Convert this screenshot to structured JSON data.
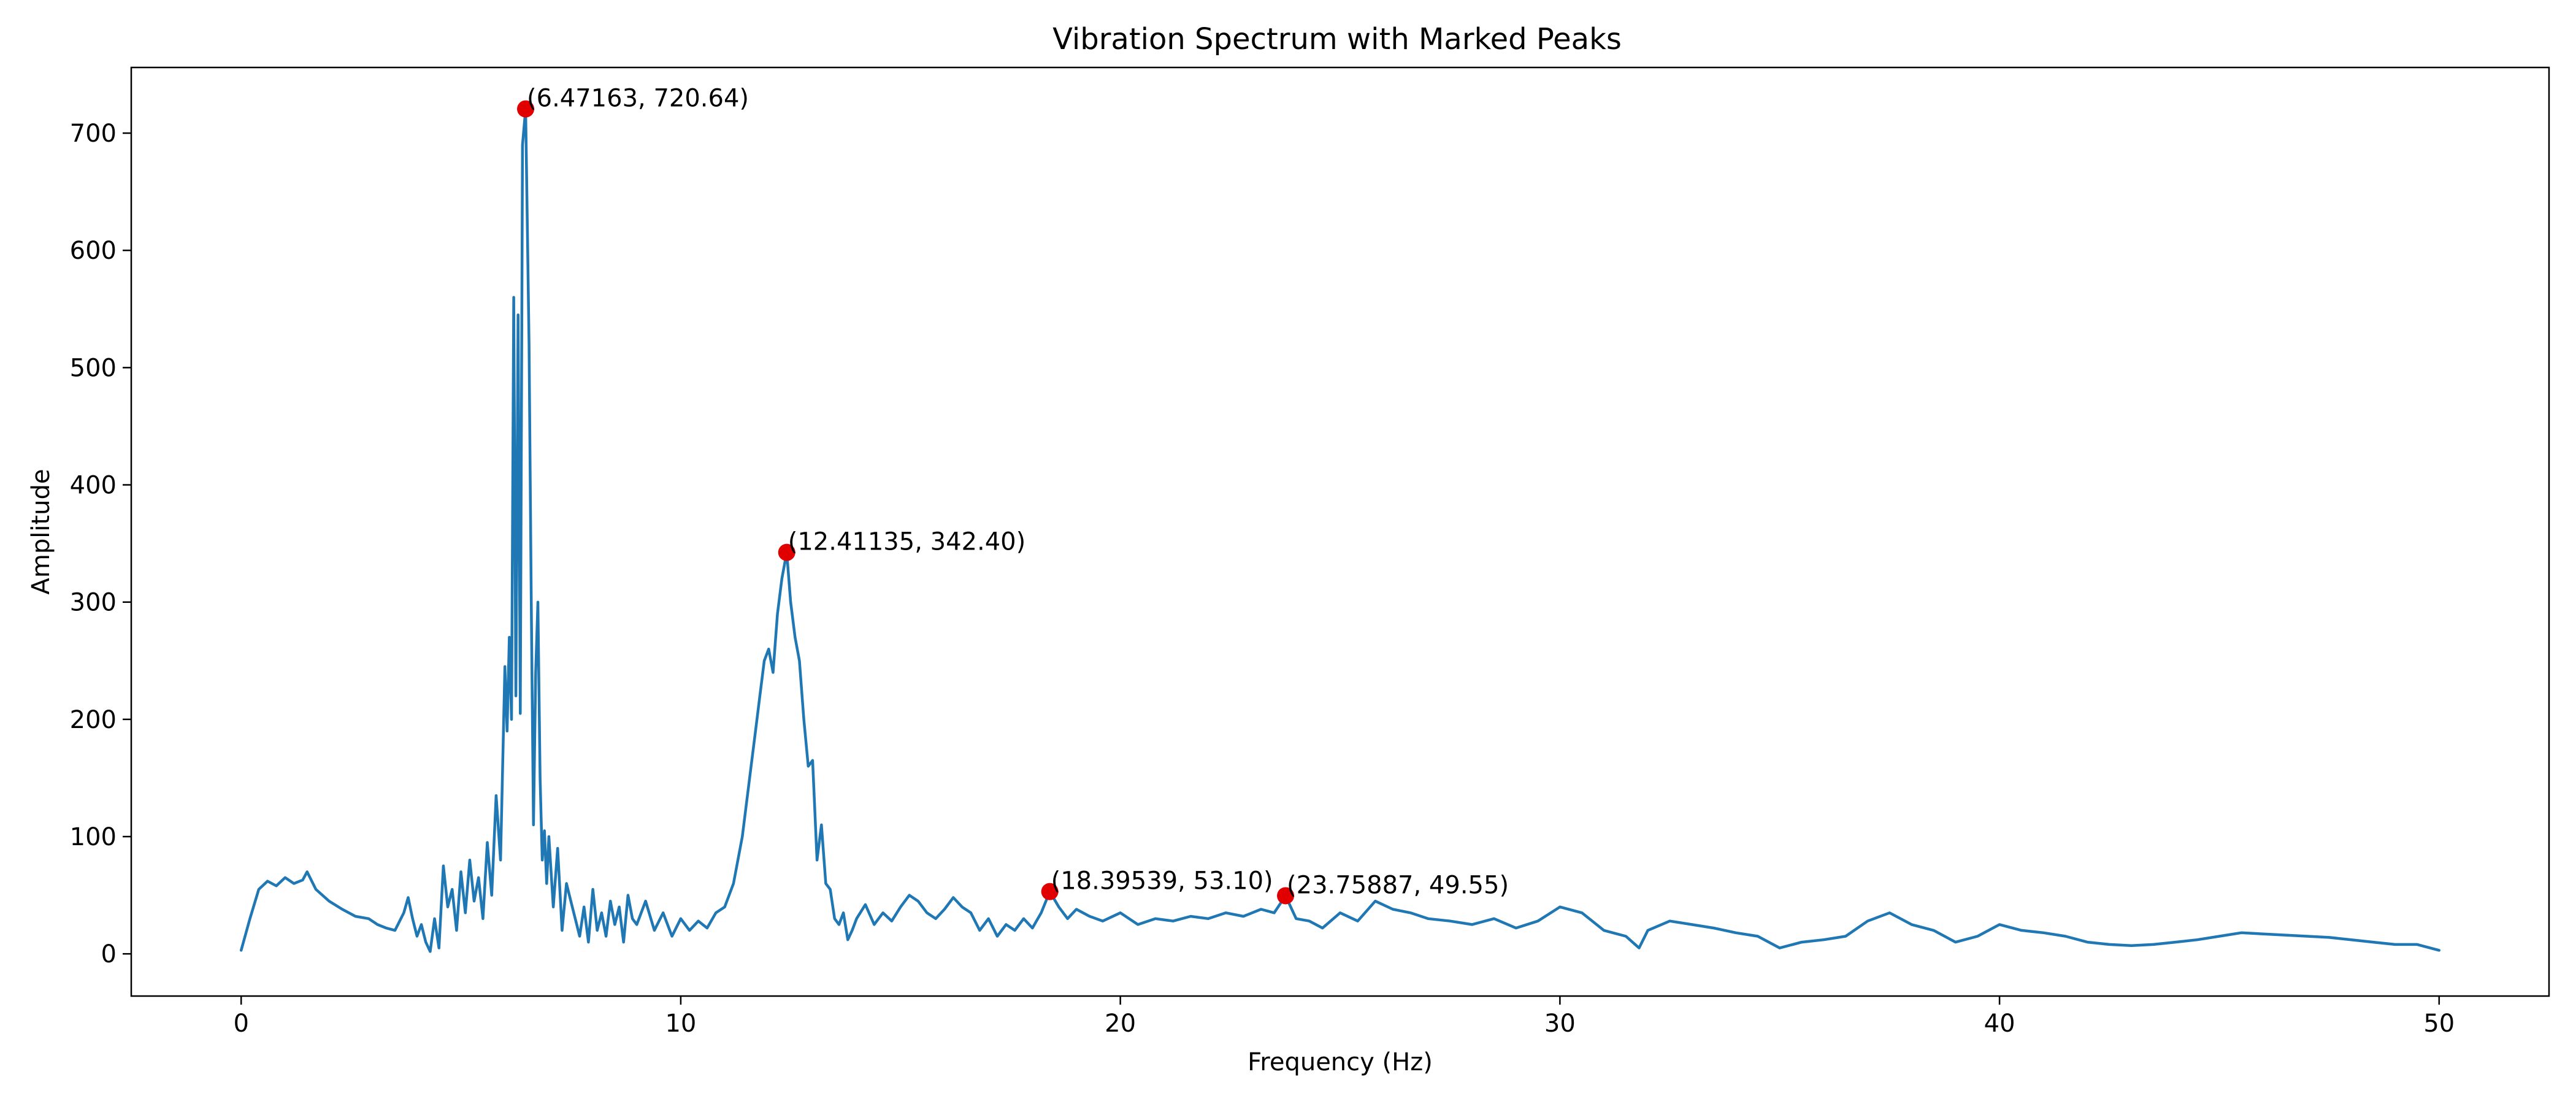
{
  "chart_data": {
    "type": "line",
    "title": "Vibration Spectrum with Marked Peaks",
    "xlabel": "Frequency (Hz)",
    "ylabel": "Amplitude",
    "xlim": [
      -2.5,
      52.5
    ],
    "ylim": [
      -36,
      756
    ],
    "xticks": [
      0,
      10,
      20,
      30,
      40,
      50
    ],
    "yticks": [
      0,
      100,
      200,
      300,
      400,
      500,
      600,
      700
    ],
    "grid": false,
    "legend": "none",
    "colors": {
      "line": "#1f77b4",
      "peaks": "#e00000",
      "axes": "#000000"
    },
    "series": [
      {
        "x": [
          0,
          0.2,
          0.4,
          0.6,
          0.8,
          1.0,
          1.2,
          1.4,
          1.5,
          1.7,
          2.0,
          2.3,
          2.6,
          2.9,
          3.1,
          3.3,
          3.5,
          3.7,
          3.8,
          3.9,
          4.0,
          4.1,
          4.2,
          4.3,
          4.4,
          4.5,
          4.6,
          4.7,
          4.8,
          4.9,
          5.0,
          5.1,
          5.2,
          5.3,
          5.4,
          5.5,
          5.6,
          5.7,
          5.8,
          5.9,
          6.0,
          6.05,
          6.1,
          6.15,
          6.2,
          6.25,
          6.3,
          6.35,
          6.4,
          6.47163,
          6.55,
          6.6,
          6.65,
          6.7,
          6.75,
          6.8,
          6.85,
          6.9,
          6.95,
          7.0,
          7.1,
          7.2,
          7.3,
          7.4,
          7.5,
          7.6,
          7.7,
          7.8,
          7.9,
          8.0,
          8.1,
          8.2,
          8.3,
          8.4,
          8.5,
          8.6,
          8.7,
          8.8,
          8.9,
          9.0,
          9.2,
          9.4,
          9.6,
          9.8,
          10.0,
          10.2,
          10.4,
          10.6,
          10.8,
          11.0,
          11.2,
          11.4,
          11.6,
          11.7,
          11.8,
          11.9,
          12.0,
          12.1,
          12.2,
          12.3,
          12.41135,
          12.5,
          12.6,
          12.7,
          12.8,
          12.9,
          13.0,
          13.1,
          13.2,
          13.3,
          13.4,
          13.5,
          13.6,
          13.7,
          13.8,
          13.9,
          14.0,
          14.2,
          14.4,
          14.6,
          14.8,
          15.0,
          15.2,
          15.4,
          15.6,
          15.8,
          16.0,
          16.2,
          16.4,
          16.6,
          16.8,
          17.0,
          17.2,
          17.4,
          17.6,
          17.8,
          18.0,
          18.2,
          18.39539,
          18.6,
          18.8,
          19.0,
          19.3,
          19.6,
          20.0,
          20.4,
          20.8,
          21.2,
          21.6,
          22.0,
          22.4,
          22.8,
          23.2,
          23.5,
          23.75887,
          24.0,
          24.3,
          24.6,
          25.0,
          25.4,
          25.8,
          26.2,
          26.6,
          27.0,
          27.5,
          28.0,
          28.5,
          29.0,
          29.5,
          30.0,
          30.5,
          31.0,
          31.5,
          31.8,
          32.0,
          32.5,
          33.0,
          33.5,
          34.0,
          34.5,
          35.0,
          35.5,
          36.0,
          36.5,
          37.0,
          37.5,
          38.0,
          38.5,
          39.0,
          39.5,
          40.0,
          40.5,
          41.0,
          41.5,
          42.0,
          42.5,
          43.0,
          43.5,
          44.0,
          44.5,
          45.0,
          45.5,
          46.0,
          46.5,
          47.0,
          47.5,
          48.0,
          48.5,
          49.0,
          49.5,
          50.0
        ],
        "y": [
          3,
          30,
          55,
          62,
          58,
          65,
          60,
          63,
          70,
          55,
          45,
          38,
          32,
          30,
          25,
          22,
          20,
          35,
          48,
          30,
          15,
          25,
          10,
          2,
          30,
          5,
          75,
          40,
          55,
          20,
          70,
          35,
          80,
          45,
          65,
          30,
          95,
          50,
          135,
          80,
          245,
          190,
          270,
          200,
          560,
          220,
          545,
          205,
          690,
          720.64,
          520,
          300,
          110,
          240,
          300,
          150,
          80,
          105,
          60,
          100,
          40,
          90,
          20,
          60,
          45,
          30,
          15,
          40,
          10,
          55,
          20,
          35,
          15,
          45,
          25,
          40,
          10,
          50,
          30,
          25,
          45,
          20,
          35,
          15,
          30,
          20,
          28,
          22,
          35,
          40,
          60,
          100,
          160,
          190,
          220,
          250,
          260,
          240,
          290,
          320,
          342.4,
          300,
          270,
          250,
          200,
          160,
          165,
          80,
          110,
          60,
          55,
          30,
          25,
          35,
          12,
          20,
          30,
          42,
          25,
          35,
          28,
          40,
          50,
          45,
          35,
          30,
          38,
          48,
          40,
          35,
          20,
          30,
          15,
          25,
          20,
          30,
          22,
          35,
          53.1,
          40,
          30,
          38,
          32,
          28,
          35,
          25,
          30,
          28,
          32,
          30,
          35,
          32,
          38,
          35,
          49.55,
          30,
          28,
          22,
          35,
          28,
          45,
          38,
          35,
          30,
          28,
          25,
          30,
          22,
          28,
          40,
          35,
          20,
          15,
          5,
          20,
          28,
          25,
          22,
          18,
          15,
          5,
          10,
          12,
          15,
          28,
          35,
          25,
          20,
          10,
          15,
          25,
          20,
          18,
          15,
          10,
          8,
          7,
          8,
          10,
          12,
          15,
          18,
          17,
          16,
          15,
          14,
          12,
          10,
          8,
          8,
          3
        ]
      }
    ],
    "peaks": [
      {
        "x": 6.47163,
        "y": 720.64,
        "label": "(6.47163, 720.64)"
      },
      {
        "x": 12.41135,
        "y": 342.4,
        "label": "(12.41135, 342.40)"
      },
      {
        "x": 18.39539,
        "y": 53.1,
        "label": "(18.39539, 53.10)"
      },
      {
        "x": 23.75887,
        "y": 49.55,
        "label": "(23.75887, 49.55)"
      }
    ]
  }
}
